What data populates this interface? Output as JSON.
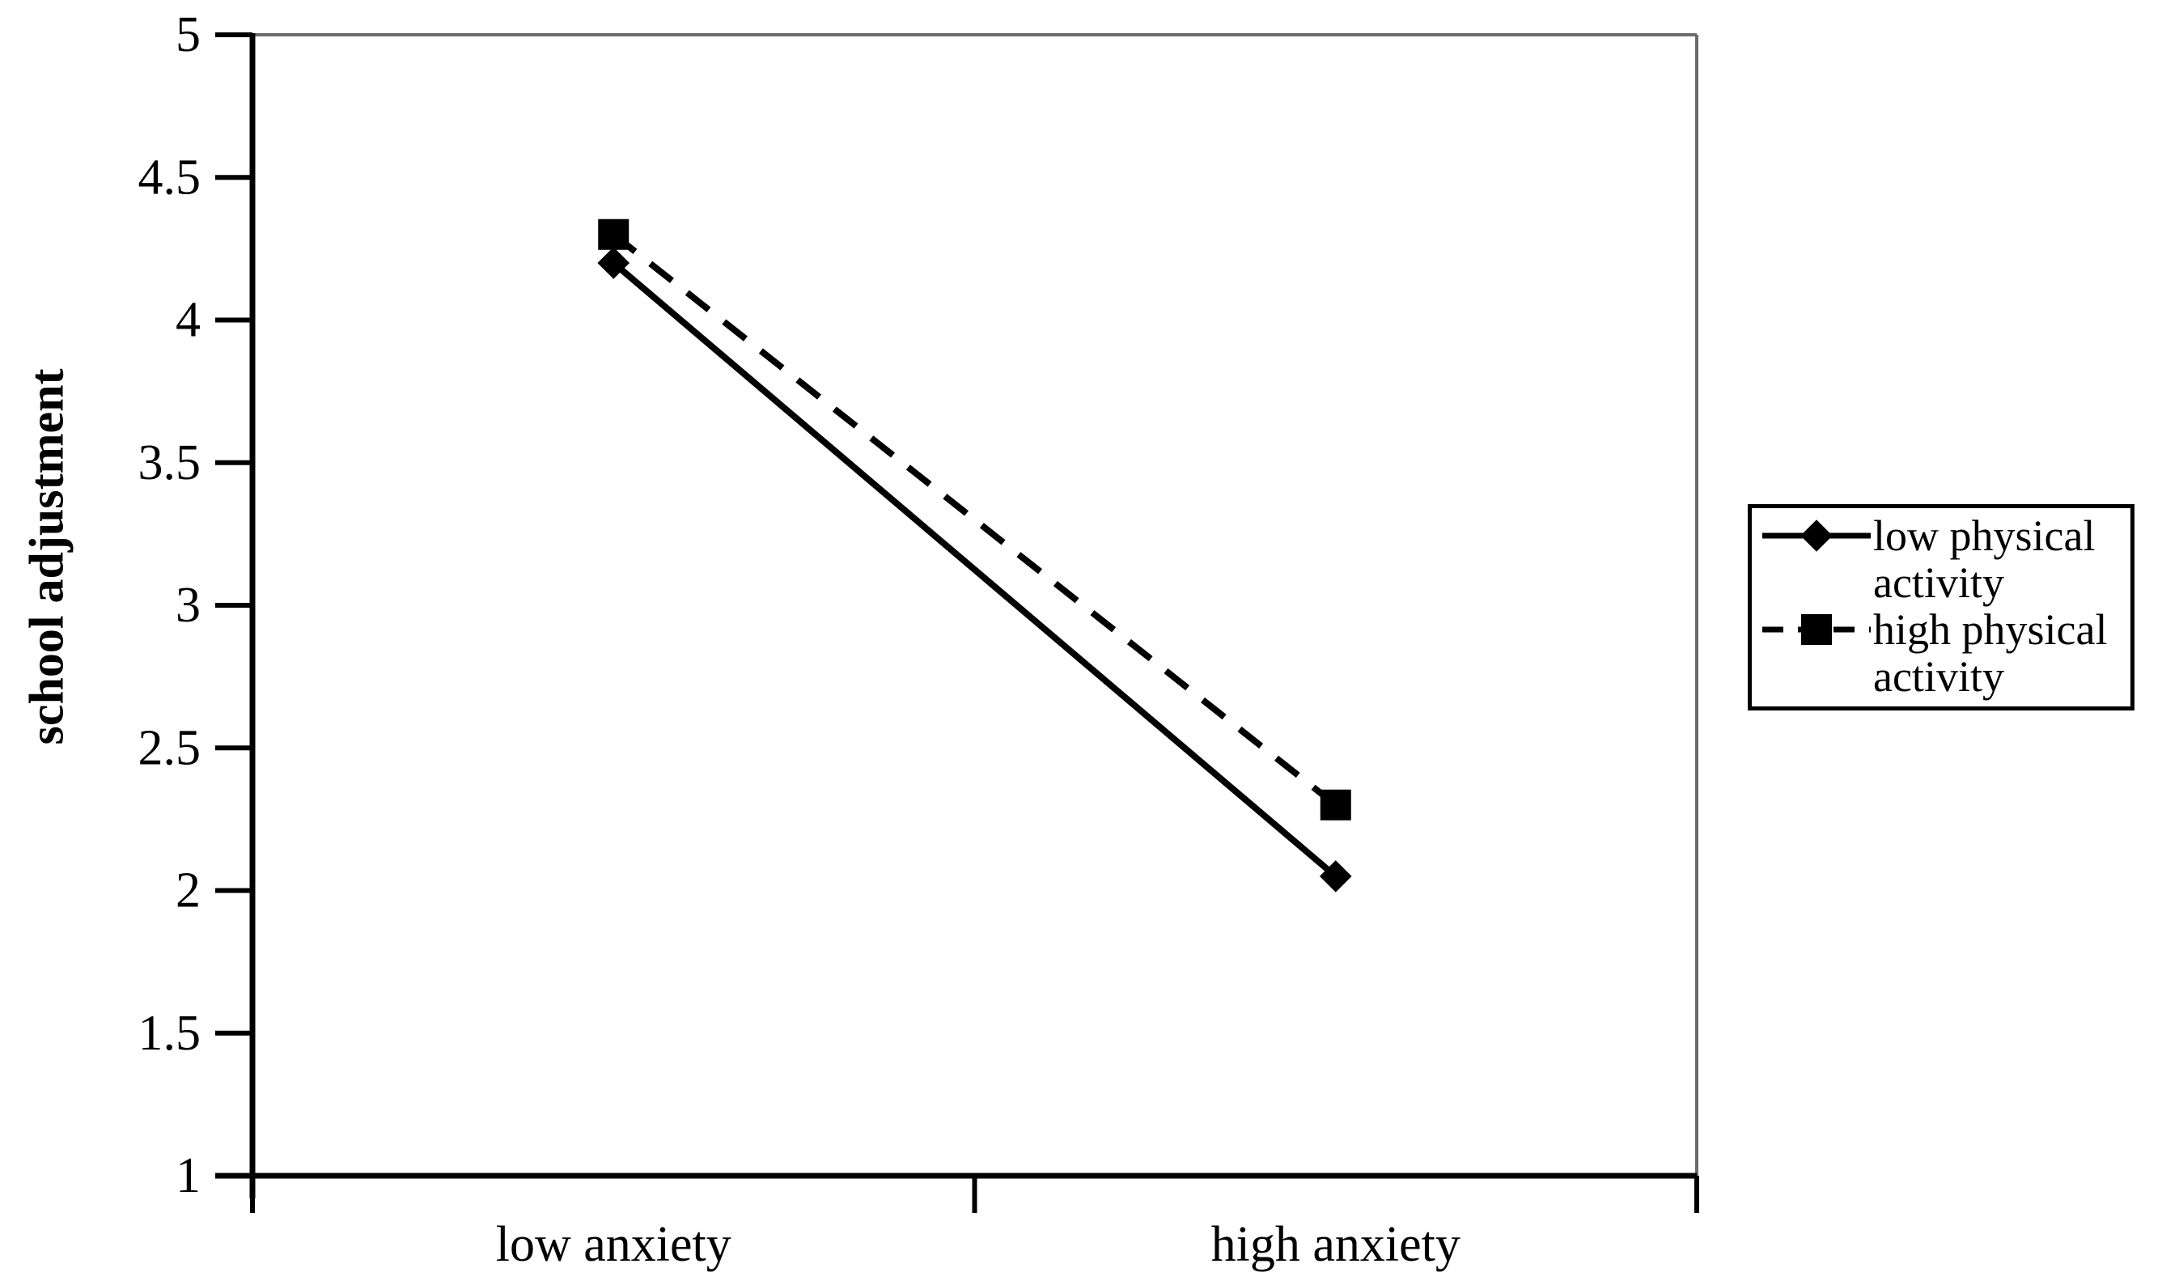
{
  "chart_data": {
    "type": "line",
    "categories": [
      "low anxiety",
      "high anxiety"
    ],
    "series": [
      {
        "name": "low physical activity",
        "values": [
          4.2,
          2.05
        ],
        "line": "solid",
        "marker": "diamond"
      },
      {
        "name": "high physical activity",
        "values": [
          4.3,
          2.3
        ],
        "line": "dashed",
        "marker": "square"
      }
    ],
    "title": "",
    "xlabel": "",
    "ylabel": "school adjustment",
    "ylim": [
      1,
      5
    ],
    "ytick_step": 0.5,
    "grid": false,
    "legend_position": "right",
    "colors": {
      "series": "#000000",
      "axis": "#000000",
      "frame_top_right": "#6b6b6b",
      "background": "#ffffff",
      "text": "#000000"
    }
  }
}
